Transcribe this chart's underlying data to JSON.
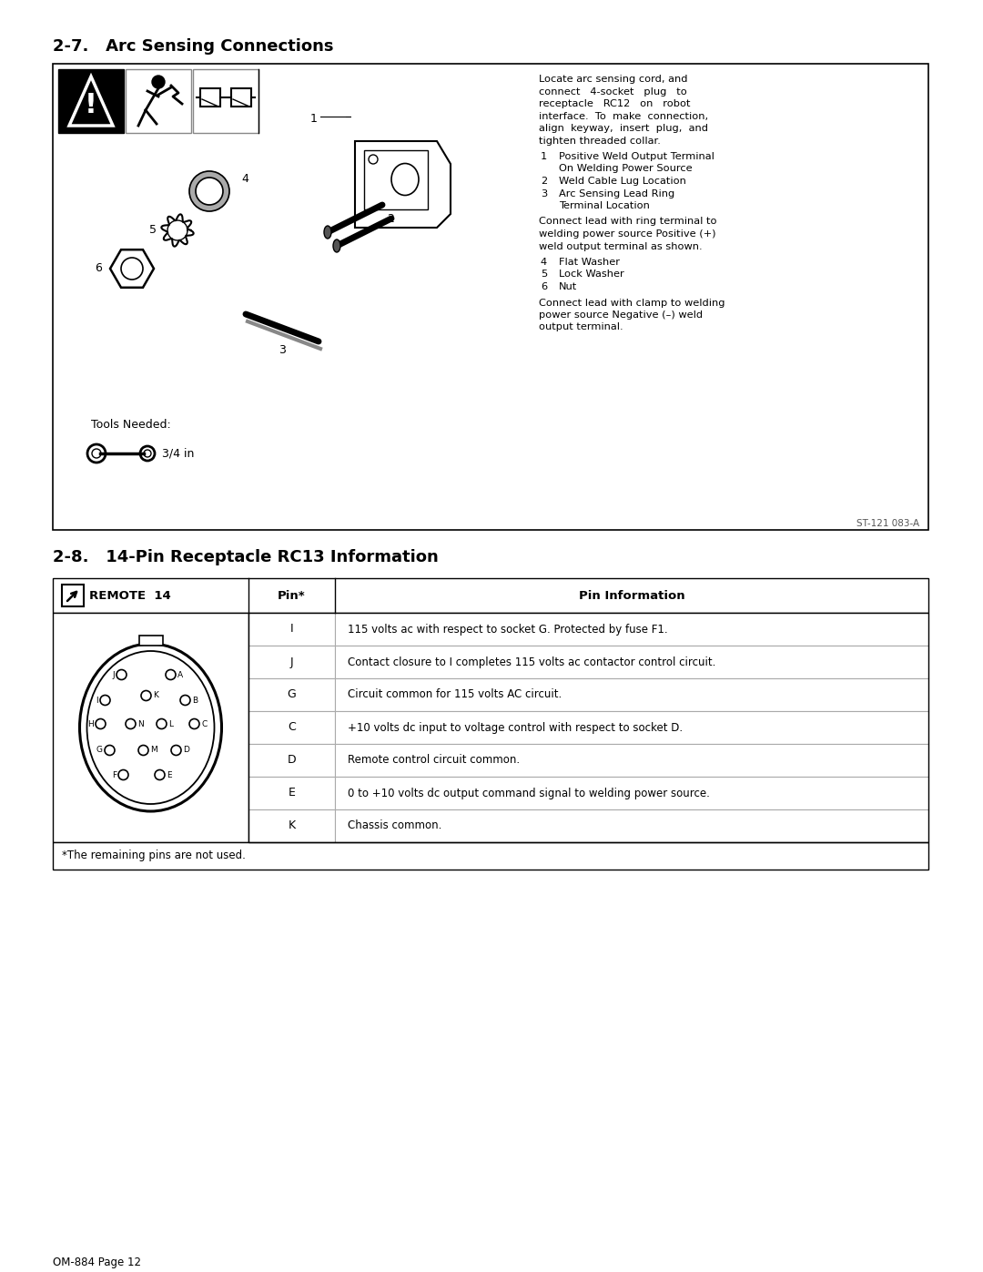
{
  "page_bg": "#ffffff",
  "section1_title": "2-7.   Arc Sensing Connections",
  "section2_title": "2-8.   14-Pin Receptacle RC13 Information",
  "page_label": "OM-884 Page 12",
  "arc_sensing_text": "Locate arc sensing cord, and\nconnect   4-socket   plug   to\nreceptacle   RC12   on   robot\ninterface.  To  make  connection,\nalign  keyway,  insert  plug,  and\ntighten threaded collar.",
  "arc_items": [
    [
      "1",
      "Positive Weld Output Terminal\n   On Welding Power Source"
    ],
    [
      "2",
      "Weld Cable Lug Location"
    ],
    [
      "3",
      "Arc Sensing Lead Ring\n   Terminal Location"
    ]
  ],
  "connect_lead_text": "Connect lead with ring terminal to\nwelding power source Positive (+)\nweld output terminal as shown.",
  "arc_items2": [
    [
      "4",
      "Flat Washer"
    ],
    [
      "5",
      "Lock Washer"
    ],
    [
      "6",
      "Nut"
    ]
  ],
  "connect_clamp_text": "Connect lead with clamp to welding\npower source Negative (–) weld\noutput terminal.",
  "tools_needed": "Tools Needed:",
  "tool_size": "3/4 in",
  "image_code": "ST-121 083-A",
  "table_header_pin": "Pin*",
  "table_header_info": "Pin Information",
  "table_rows": [
    [
      "I",
      "115 volts ac with respect to socket G. Protected by fuse F1."
    ],
    [
      "J",
      "Contact closure to I completes 115 volts ac contactor control circuit."
    ],
    [
      "G",
      "Circuit common for 115 volts AC circuit."
    ],
    [
      "C",
      "+10 volts dc input to voltage control with respect to socket D."
    ],
    [
      "D",
      "Remote control circuit common."
    ],
    [
      "E",
      "0 to +10 volts dc output command signal to welding power source."
    ],
    [
      "K",
      "Chassis common."
    ]
  ],
  "table_footnote": "*The remaining pins are not used.",
  "remote_label": "REMOTE  14"
}
